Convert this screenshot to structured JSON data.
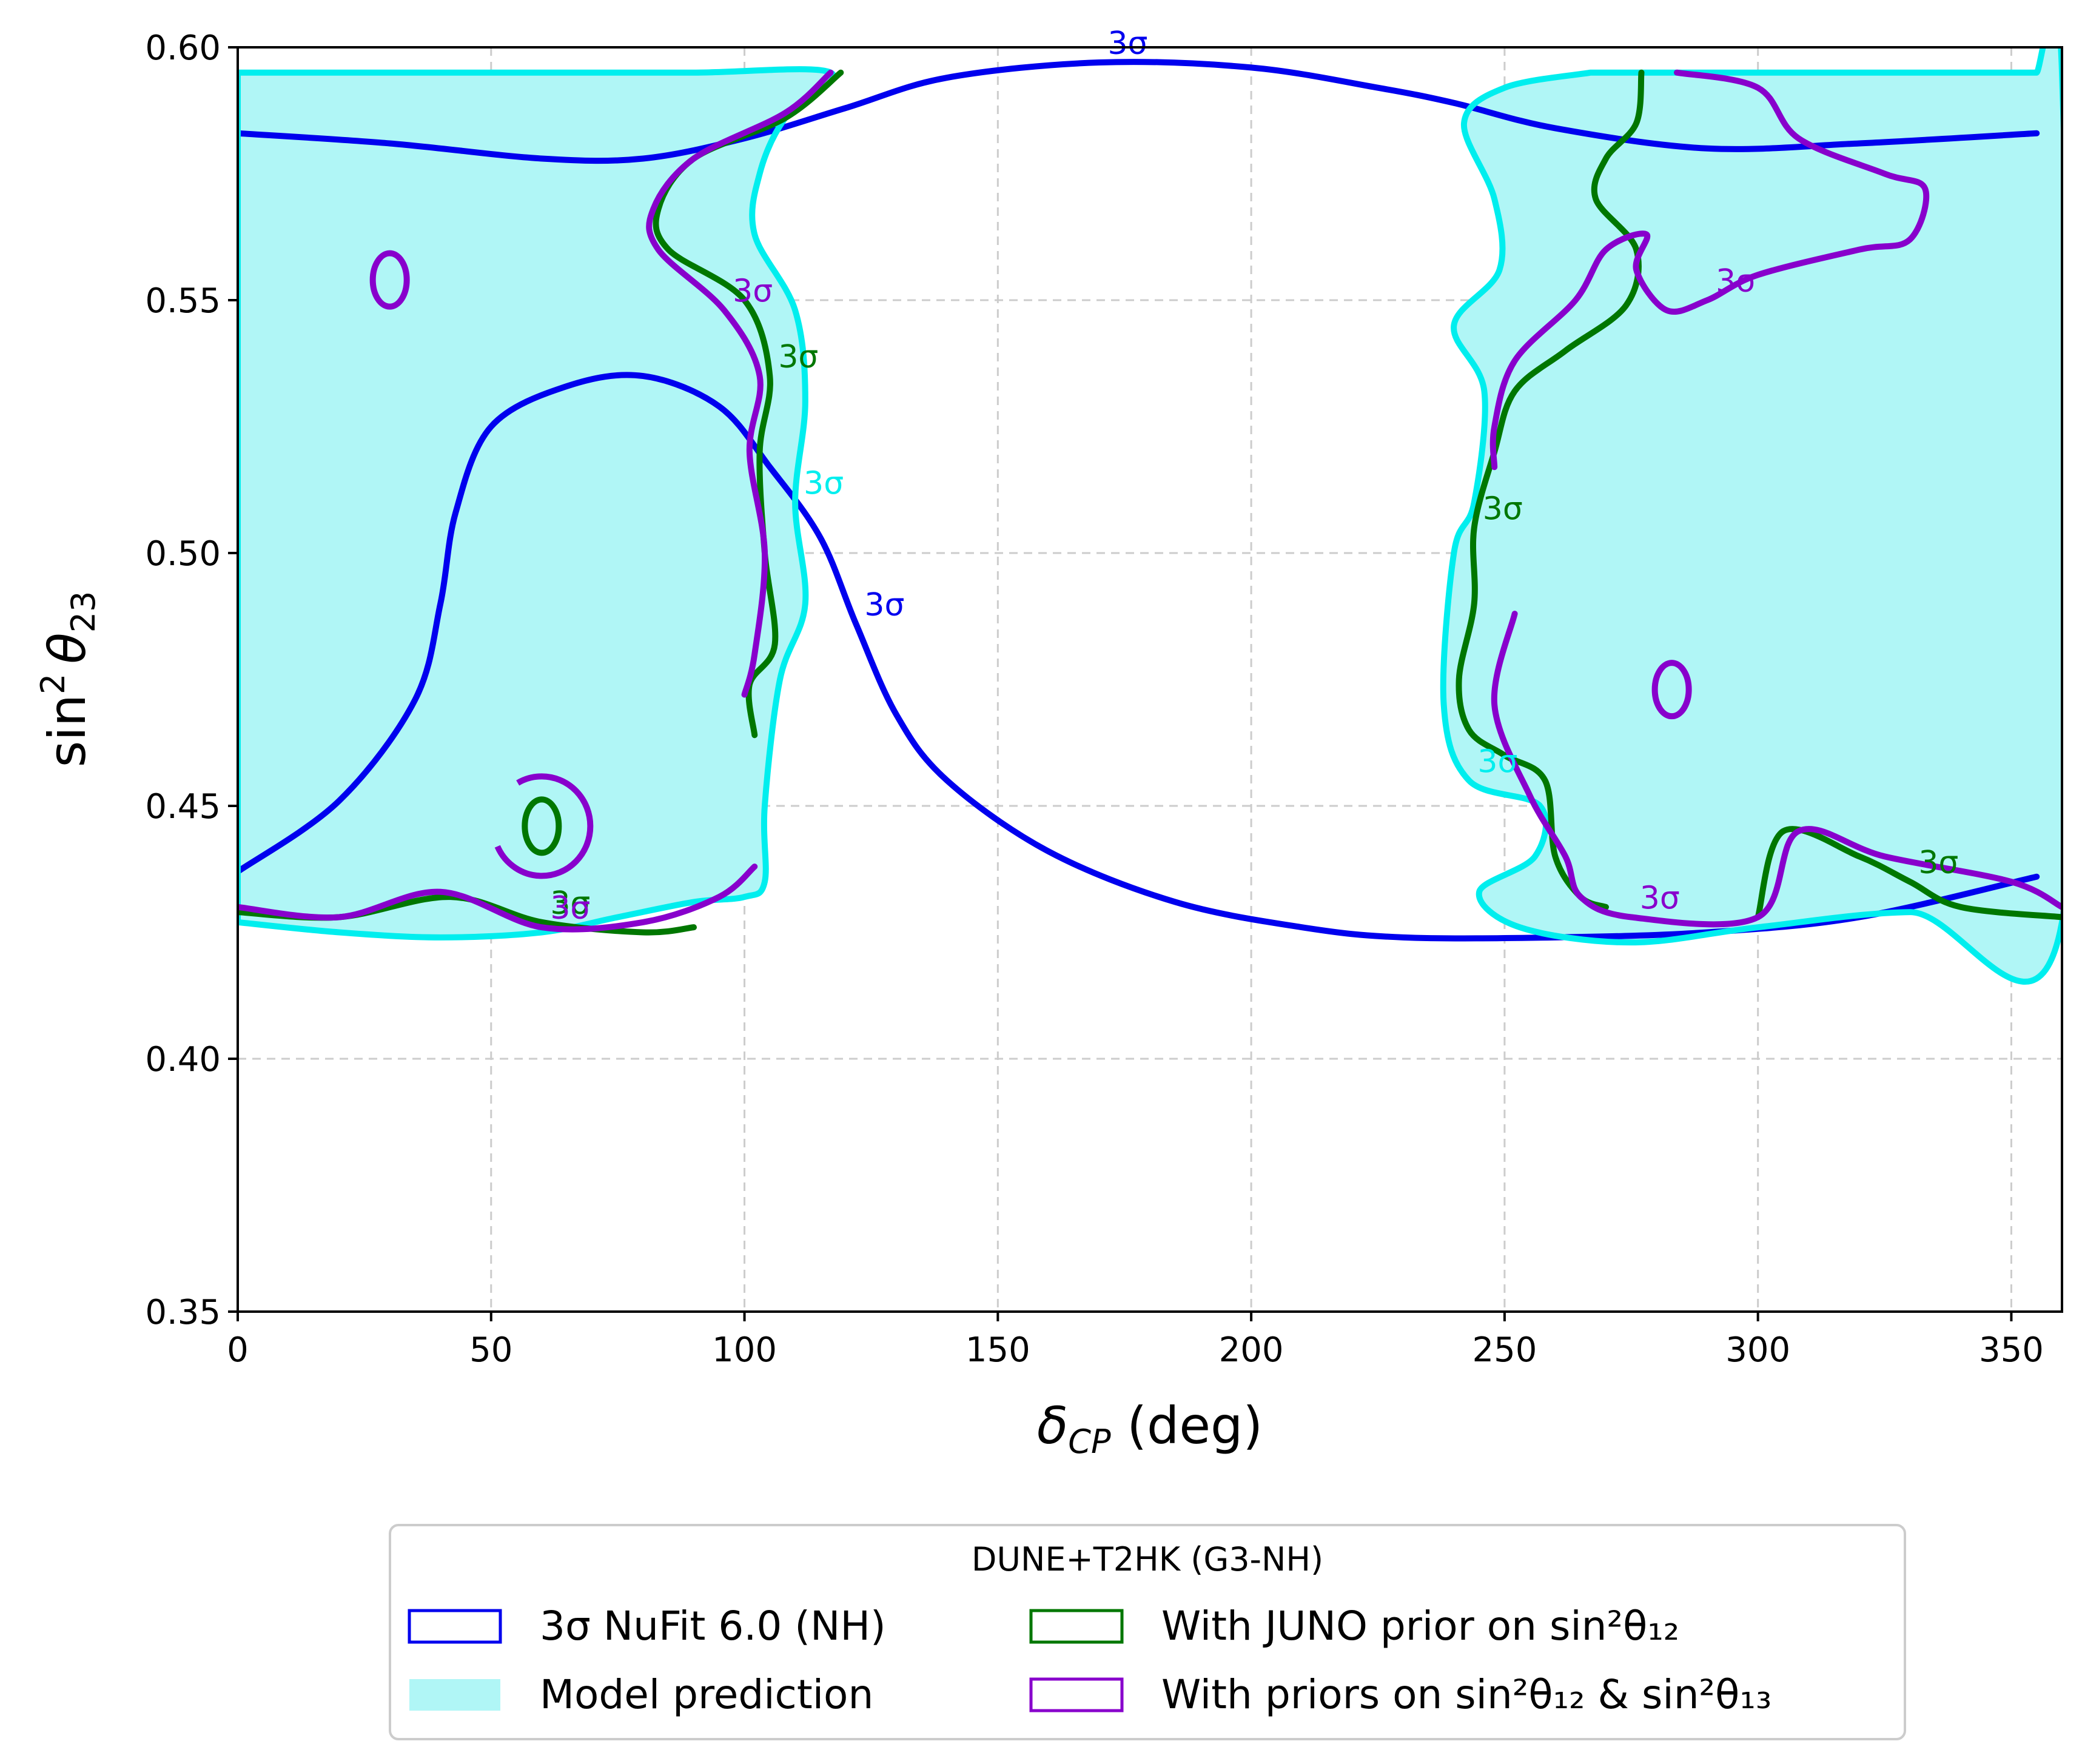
{
  "chart_data": {
    "type": "contour",
    "xlabel": "δ_CP (deg)",
    "xlabel_main": "δ",
    "xlabel_sub": "CP",
    "xlabel_unit": " (deg)",
    "ylabel": "sin² θ₂₃",
    "ylabel_sin": "sin",
    "ylabel_sup": "2",
    "ylabel_theta": "θ",
    "ylabel_sub": "23",
    "xlim": [
      0,
      360
    ],
    "ylim": [
      0.35,
      0.6
    ],
    "xticks": [
      "0",
      "50",
      "100",
      "150",
      "200",
      "250",
      "300",
      "350"
    ],
    "yticks": [
      "0.35",
      "0.40",
      "0.45",
      "0.50",
      "0.55",
      "0.60"
    ],
    "grid": true,
    "legend": {
      "title": "DUNE+T2HK (G3-NH)",
      "position": "below plot, center",
      "items": [
        {
          "label": "3σ NuFit 6.0 (NH)",
          "color": "#0000ee",
          "style": "outline"
        },
        {
          "label": "With JUNO prior on sin²θ₁₂",
          "color": "#007700",
          "style": "outline"
        },
        {
          "label": "Model prediction",
          "color": "#b0f6f6",
          "style": "filled"
        },
        {
          "label": "With priors on sin²θ₁₂ & sin²θ₁₃",
          "color": "#8800cc",
          "style": "outline"
        }
      ]
    },
    "contour_label": "3σ",
    "series": [
      {
        "name": "3σ NuFit 6.0 (NH)",
        "color": "#0000ee",
        "paths": [
          [
            [
              0,
              0.583
            ],
            [
              30,
              0.581
            ],
            [
              60,
              0.578
            ],
            [
              80,
              0.578
            ],
            [
              100,
              0.582
            ],
            [
              120,
              0.588
            ],
            [
              140,
              0.594
            ],
            [
              170,
              0.597
            ],
            [
              200,
              0.596
            ],
            [
              225,
              0.592
            ],
            [
              240,
              0.589
            ],
            [
              260,
              0.584
            ],
            [
              290,
              0.58
            ],
            [
              320,
              0.581
            ],
            [
              355,
              0.583
            ]
          ],
          [
            [
              0,
              0.437
            ],
            [
              20,
              0.451
            ],
            [
              35,
              0.471
            ],
            [
              40,
              0.49
            ],
            [
              43,
              0.508
            ],
            [
              50,
              0.525
            ],
            [
              65,
              0.533
            ],
            [
              80,
              0.535
            ],
            [
              95,
              0.529
            ],
            [
              105,
              0.517
            ],
            [
              115,
              0.503
            ],
            [
              122,
              0.486
            ],
            [
              130,
              0.468
            ],
            [
              140,
              0.455
            ],
            [
              160,
              0.441
            ],
            [
              185,
              0.431
            ],
            [
              210,
              0.426
            ],
            [
              230,
              0.424
            ],
            [
              260,
              0.424
            ],
            [
              290,
              0.425
            ],
            [
              320,
              0.428
            ],
            [
              355,
              0.436
            ]
          ]
        ]
      },
      {
        "name": "Model prediction",
        "color": "#00eeee",
        "fill": "#b0f6f6",
        "paths": [
          [
            [
              0,
              0.595
            ],
            [
              10,
              0.595
            ],
            [
              30,
              0.595
            ],
            [
              60,
              0.595
            ],
            [
              90,
              0.595
            ],
            [
              117,
              0.595
            ],
            [
              108,
              0.586
            ],
            [
              103,
              0.575
            ],
            [
              102,
              0.563
            ],
            [
              110,
              0.548
            ],
            [
              112,
              0.53
            ],
            [
              110,
              0.51
            ],
            [
              112,
              0.49
            ],
            [
              107,
              0.475
            ],
            [
              104,
              0.45
            ],
            [
              104,
              0.435
            ],
            [
              100,
              0.432
            ],
            [
              90,
              0.431
            ],
            [
              75,
              0.428
            ],
            [
              60,
              0.425
            ],
            [
              40,
              0.424
            ],
            [
              20,
              0.425
            ],
            [
              0,
              0.427
            ]
          ],
          [
            [
              267,
              0.595
            ],
            [
              250,
              0.592
            ],
            [
              242,
              0.585
            ],
            [
              248,
              0.57
            ],
            [
              249,
              0.556
            ],
            [
              240,
              0.545
            ],
            [
              246,
              0.532
            ],
            [
              244,
              0.51
            ],
            [
              240,
              0.5
            ],
            [
              238,
              0.47
            ],
            [
              243,
              0.455
            ],
            [
              257,
              0.45
            ],
            [
              256,
              0.44
            ],
            [
              245,
              0.433
            ],
            [
              253,
              0.426
            ],
            [
              275,
              0.423
            ],
            [
              300,
              0.426
            ],
            [
              330,
              0.429
            ],
            [
              360,
              0.427
            ],
            [
              360,
              0.595
            ],
            [
              355,
              0.595
            ]
          ]
        ]
      },
      {
        "name": "With JUNO prior on sin²θ₁₂",
        "color": "#007700",
        "paths": [
          [
            [
              119,
              0.595
            ],
            [
              108,
              0.586
            ],
            [
              90,
              0.578
            ],
            [
              83,
              0.568
            ],
            [
              85,
              0.56
            ],
            [
              100,
              0.55
            ],
            [
              105,
              0.535
            ],
            [
              103,
              0.52
            ],
            [
              104,
              0.5
            ],
            [
              106,
              0.482
            ],
            [
              101,
              0.474
            ],
            [
              102,
              0.464
            ]
          ],
          [
            [
              277,
              0.595
            ],
            [
              276,
              0.585
            ],
            [
              270,
              0.578
            ],
            [
              268,
              0.57
            ],
            [
              276,
              0.56
            ],
            [
              274,
              0.549
            ],
            [
              262,
              0.54
            ],
            [
              252,
              0.532
            ],
            [
              248,
              0.52
            ],
            [
              244,
              0.505
            ],
            [
              244,
              0.49
            ],
            [
              241,
              0.475
            ],
            [
              243,
              0.465
            ],
            [
              250,
              0.46
            ],
            [
              258,
              0.455
            ],
            [
              260,
              0.44
            ],
            [
              265,
              0.432
            ],
            [
              270,
              0.43
            ]
          ],
          [
            [
              0,
              0.429
            ],
            [
              20,
              0.428
            ],
            [
              42,
              0.432
            ],
            [
              60,
              0.427
            ],
            [
              80,
              0.425
            ],
            [
              90,
              0.426
            ]
          ],
          [
            [
              300,
              0.428
            ],
            [
              305,
              0.445
            ],
            [
              320,
              0.44
            ],
            [
              330,
              0.435
            ],
            [
              340,
              0.43
            ],
            [
              360,
              0.428
            ]
          ]
        ]
      },
      {
        "name": "With priors on sin²θ₁₂ & sin²θ₁₃",
        "color": "#8800cc",
        "paths": [
          [
            [
              117,
              0.595
            ],
            [
              108,
              0.587
            ],
            [
              90,
              0.578
            ],
            [
              82,
              0.568
            ],
            [
              83,
              0.56
            ],
            [
              96,
              0.548
            ],
            [
              103,
              0.535
            ],
            [
              101,
              0.52
            ],
            [
              104,
              0.5
            ],
            [
              102,
              0.48
            ],
            [
              100,
              0.472
            ]
          ],
          [
            [
              284,
              0.595
            ],
            [
              300,
              0.592
            ],
            [
              308,
              0.582
            ],
            [
              325,
              0.575
            ],
            [
              333,
              0.572
            ],
            [
              330,
              0.562
            ],
            [
              320,
              0.56
            ],
            [
              300,
              0.555
            ],
            [
              290,
              0.55
            ],
            [
              282,
              0.548
            ],
            [
              276,
              0.556
            ],
            [
              278,
              0.563
            ],
            [
              270,
              0.56
            ],
            [
              264,
              0.55
            ],
            [
              252,
              0.538
            ],
            [
              248,
              0.525
            ],
            [
              248,
              0.517
            ]
          ],
          [
            [
              252,
              0.488
            ],
            [
              248,
              0.47
            ],
            [
              255,
              0.452
            ],
            [
              262,
              0.44
            ],
            [
              265,
              0.432
            ],
            [
              275,
              0.428
            ],
            [
              300,
              0.428
            ],
            [
              308,
              0.445
            ],
            [
              325,
              0.44
            ],
            [
              350,
              0.435
            ],
            [
              360,
              0.43
            ]
          ],
          [
            [
              0,
              0.43
            ],
            [
              20,
              0.428
            ],
            [
              40,
              0.433
            ],
            [
              60,
              0.426
            ],
            [
              80,
              0.427
            ],
            [
              95,
              0.432
            ],
            [
              102,
              0.438
            ]
          ]
        ]
      }
    ],
    "isolated_markers": [
      {
        "name": "Purple island near δ=30",
        "color": "#8800cc",
        "x": 30,
        "y": 0.554
      },
      {
        "name": "Purple island near δ=283",
        "color": "#8800cc",
        "x": 283,
        "y": 0.473
      },
      {
        "name": "Green island near δ=60",
        "color": "#007700",
        "x": 60,
        "y": 0.446
      },
      {
        "name": "Purple arc near δ=60",
        "color": "#8800cc",
        "x": 60,
        "y": 0.446
      }
    ]
  }
}
